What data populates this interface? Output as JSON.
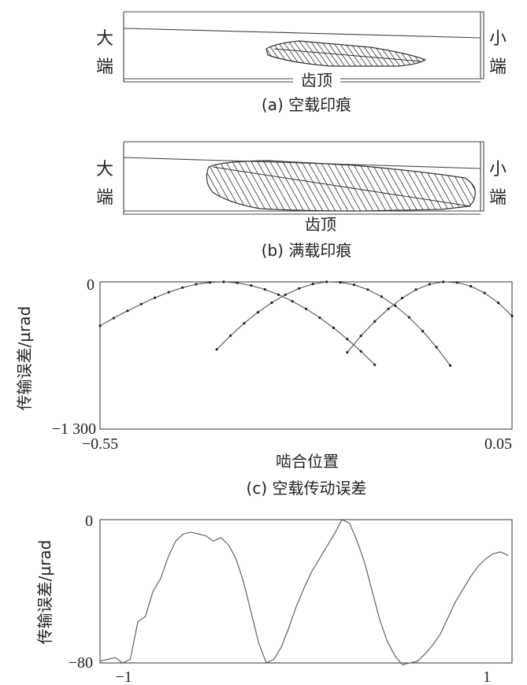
{
  "panel_a": {
    "left_end": [
      "大",
      "端"
    ],
    "right_end": [
      "小",
      "端"
    ],
    "top_label": "齿顶",
    "caption": "(a) 空载印痕"
  },
  "panel_b": {
    "left_end": [
      "大",
      "端"
    ],
    "right_end": [
      "小",
      "端"
    ],
    "top_label": "齿顶",
    "caption": "(b) 满载印痕"
  },
  "chart_data": [
    {
      "type": "line",
      "caption": "(c) 空载传动误差",
      "xlabel": "啮合位置",
      "ylabel": "传输误差/µrad",
      "xlim": [
        -0.55,
        0.05
      ],
      "ylim": [
        -1300,
        0
      ],
      "x_ticks": [
        "−0.55",
        "0.05"
      ],
      "y_ticks": [
        "0",
        "−1 300"
      ],
      "series": [
        {
          "x": [
            -0.55,
            -0.53,
            -0.51,
            -0.49,
            -0.47,
            -0.45,
            -0.43,
            -0.41,
            -0.39,
            -0.37,
            -0.35,
            -0.33,
            -0.31,
            -0.29,
            -0.27,
            -0.25,
            -0.23,
            -0.21,
            -0.19,
            -0.17,
            -0.15
          ],
          "y": [
            -388,
            -320,
            -256,
            -196,
            -140,
            -91,
            -51,
            -21,
            -5,
            0,
            -9,
            -32,
            -67,
            -113,
            -171,
            -238,
            -317,
            -406,
            -505,
            -613,
            -731
          ]
        },
        {
          "x": [
            -0.38,
            -0.36,
            -0.34,
            -0.32,
            -0.3,
            -0.28,
            -0.26,
            -0.24,
            -0.22,
            -0.2,
            -0.18,
            -0.16,
            -0.14,
            -0.12,
            -0.1,
            -0.08,
            -0.06,
            -0.04
          ],
          "y": [
            -596,
            -475,
            -366,
            -268,
            -184,
            -113,
            -58,
            -19,
            0,
            -4,
            -26,
            -68,
            -130,
            -211,
            -313,
            -435,
            -577,
            -738
          ]
        },
        {
          "x": [
            -0.19,
            -0.17,
            -0.15,
            -0.13,
            -0.11,
            -0.09,
            -0.07,
            -0.05,
            -0.03,
            -0.01,
            0.01,
            0.03,
            0.05
          ],
          "y": [
            -622,
            -476,
            -349,
            -238,
            -143,
            -69,
            -21,
            0,
            -6,
            -38,
            -98,
            -185,
            -300
          ]
        }
      ]
    },
    {
      "type": "line",
      "caption": "",
      "xlabel": "",
      "ylabel": "传输误差/µrad",
      "xlim": [
        -1.1,
        1.08
      ],
      "ylim": [
        -80,
        0
      ],
      "x_ticks": [
        "−1",
        "1"
      ],
      "y_ticks": [
        "0",
        "−80"
      ],
      "series": [
        {
          "x": [
            -1.1,
            -1.02,
            -0.98,
            -0.94,
            -0.9,
            -0.86,
            -0.82,
            -0.78,
            -0.74,
            -0.7,
            -0.66,
            -0.62,
            -0.58,
            -0.54,
            -0.5,
            -0.46,
            -0.42,
            -0.38,
            -0.34,
            -0.3,
            -0.26,
            -0.22,
            -0.18,
            -0.14,
            -0.1,
            -0.06,
            -0.02,
            0.02,
            0.06,
            0.1,
            0.14,
            0.18,
            0.22,
            0.26,
            0.3,
            0.34,
            0.38,
            0.42,
            0.46,
            0.5,
            0.54,
            0.58,
            0.62,
            0.66,
            0.7,
            0.74,
            0.78,
            0.82,
            0.86,
            0.9,
            0.94,
            0.98,
            1.02,
            1.06
          ],
          "y": [
            -79,
            -77,
            -80,
            -78,
            -57,
            -54,
            -40,
            -33,
            -21,
            -12,
            -8,
            -7,
            -8,
            -9,
            -12,
            -10,
            -14,
            -22,
            -35,
            -52,
            -69,
            -80,
            -78,
            -71,
            -60,
            -48,
            -38,
            -29,
            -22,
            -15,
            -8,
            0,
            -2,
            -12,
            -24,
            -40,
            -56,
            -68,
            -76,
            -81,
            -80,
            -79,
            -75,
            -70,
            -64,
            -55,
            -46,
            -39,
            -32,
            -26,
            -22,
            -19,
            -18,
            -20
          ]
        }
      ]
    }
  ]
}
